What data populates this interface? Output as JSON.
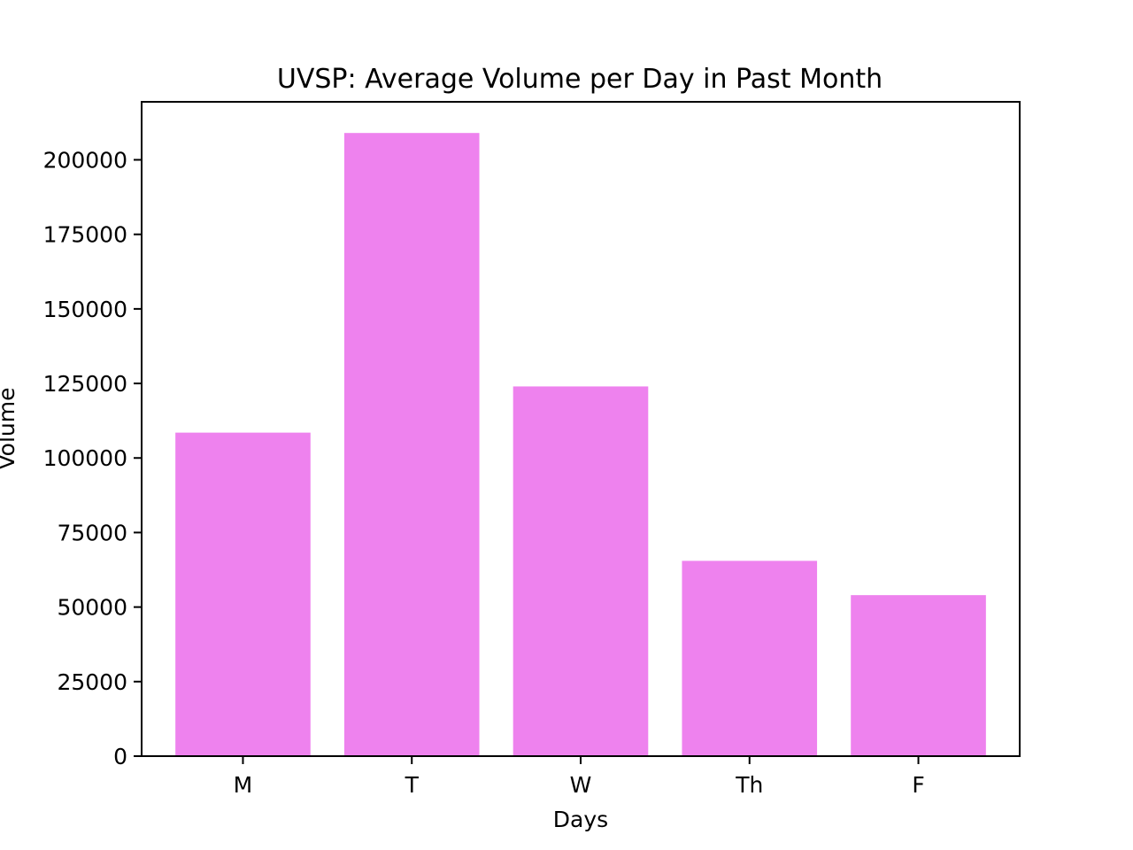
{
  "chart_data": {
    "type": "bar",
    "title": "UVSP: Average Volume per Day in Past Month",
    "xlabel": "Days",
    "ylabel": "Volume",
    "categories": [
      "M",
      "T",
      "W",
      "Th",
      "F"
    ],
    "values": [
      108500,
      209000,
      124000,
      65500,
      54000
    ],
    "ylim": [
      0,
      219450
    ],
    "yticks": [
      0,
      25000,
      50000,
      75000,
      100000,
      125000,
      150000,
      175000,
      200000
    ],
    "ytick_labels": [
      "0",
      "25000",
      "50000",
      "75000",
      "100000",
      "125000",
      "150000",
      "175000",
      "200000"
    ],
    "bar_color": "#ee82ee",
    "grid": false,
    "legend": "none"
  }
}
